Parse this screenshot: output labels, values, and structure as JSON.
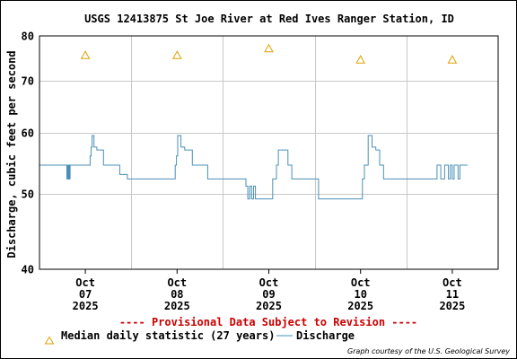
{
  "chart_data": {
    "type": "line",
    "title": "USGS 12413875 St Joe River at Red Ives Ranger Station, ID",
    "ylabel": "Discharge, cubic feet per second",
    "xlabel": "",
    "y_scale": "log",
    "ylim": [
      40,
      80
    ],
    "y_ticks": [
      40,
      50,
      60,
      70,
      80
    ],
    "xlim": [
      "2025-10-06T12:00",
      "2025-10-11T12:00"
    ],
    "x_ticks": [
      {
        "date": "2025-10-07T00:00",
        "lines": [
          "Oct",
          "07",
          "2025"
        ]
      },
      {
        "date": "2025-10-08T00:00",
        "lines": [
          "Oct",
          "08",
          "2025"
        ]
      },
      {
        "date": "2025-10-09T00:00",
        "lines": [
          "Oct",
          "09",
          "2025"
        ]
      },
      {
        "date": "2025-10-10T00:00",
        "lines": [
          "Oct",
          "10",
          "2025"
        ]
      },
      {
        "date": "2025-10-11T00:00",
        "lines": [
          "Oct",
          "11",
          "2025"
        ]
      }
    ],
    "grid": true,
    "provisional_note": "---- Provisional Data Subject to Revision ----",
    "credit": "Graph courtesy of the U.S. Geological Survey",
    "series": [
      {
        "name": "Median daily statistic (27 years)",
        "kind": "triangle-markers",
        "color": "#e0a000",
        "x": [
          "2025-10-07T00:00",
          "2025-10-08T00:00",
          "2025-10-09T00:00",
          "2025-10-10T00:00",
          "2025-10-11T00:00"
        ],
        "y": [
          75.5,
          75.5,
          77,
          74.5,
          74.5
        ]
      },
      {
        "name": "Discharge",
        "kind": "line",
        "color": "#4a8fb5",
        "x": [
          "2025-10-06T12:00",
          "2025-10-06T19:00",
          "2025-10-06T19:10",
          "2025-10-06T19:20",
          "2025-10-06T19:30",
          "2025-10-06T19:40",
          "2025-10-06T19:50",
          "2025-10-06T20:00",
          "2025-10-06T20:10",
          "2025-10-06T20:20",
          "2025-10-07T01:00",
          "2025-10-07T01:15",
          "2025-10-07T01:30",
          "2025-10-07T01:45",
          "2025-10-07T02:00",
          "2025-10-07T02:15",
          "2025-10-07T02:30",
          "2025-10-07T02:45",
          "2025-10-07T03:00",
          "2025-10-07T03:15",
          "2025-10-07T03:30",
          "2025-10-07T03:45",
          "2025-10-07T04:00",
          "2025-10-07T04:15",
          "2025-10-07T04:30",
          "2025-10-07T04:45",
          "2025-10-07T05:00",
          "2025-10-07T05:15",
          "2025-10-07T05:30",
          "2025-10-07T05:45",
          "2025-10-07T06:00",
          "2025-10-07T07:00",
          "2025-10-07T08:00",
          "2025-10-07T09:00",
          "2025-10-07T11:00",
          "2025-10-07T14:00",
          "2025-10-07T17:00",
          "2025-10-07T19:00",
          "2025-10-07T21:00",
          "2025-10-07T23:00",
          "2025-10-07T23:30",
          "2025-10-07T23:50",
          "2025-10-08T00:10",
          "2025-10-08T00:30",
          "2025-10-08T01:00",
          "2025-10-08T02:00",
          "2025-10-08T02:30",
          "2025-10-08T03:00",
          "2025-10-08T04:00",
          "2025-10-08T05:00",
          "2025-10-08T06:00",
          "2025-10-08T08:00",
          "2025-10-08T10:00",
          "2025-10-08T13:00",
          "2025-10-08T16:00",
          "2025-10-08T17:30",
          "2025-10-08T18:00",
          "2025-10-08T18:30",
          "2025-10-08T19:00",
          "2025-10-08T19:30",
          "2025-10-08T20:00",
          "2025-10-08T20:30",
          "2025-10-08T21:00",
          "2025-10-08T22:00",
          "2025-10-09T00:00",
          "2025-10-09T01:00",
          "2025-10-09T02:00",
          "2025-10-09T02:30",
          "2025-10-09T03:00",
          "2025-10-09T05:00",
          "2025-10-09T06:00",
          "2025-10-09T08:00",
          "2025-10-09T13:00",
          "2025-10-09T18:00",
          "2025-10-09T22:00",
          "2025-10-10T00:00",
          "2025-10-10T00:30",
          "2025-10-10T01:00",
          "2025-10-10T02:00",
          "2025-10-10T03:00",
          "2025-10-10T04:00",
          "2025-10-10T05:00",
          "2025-10-10T06:00",
          "2025-10-10T07:00",
          "2025-10-10T12:00",
          "2025-10-10T17:00",
          "2025-10-10T19:00",
          "2025-10-10T20:00",
          "2025-10-10T21:00",
          "2025-10-10T22:00",
          "2025-10-10T22:30",
          "2025-10-10T23:00",
          "2025-10-10T23:30",
          "2025-10-11T00:00",
          "2025-10-11T00:30",
          "2025-10-11T01:00",
          "2025-10-11T01:30",
          "2025-10-11T02:00",
          "2025-10-11T04:00"
        ],
        "y": [
          54.5,
          54.5,
          52.3,
          54.5,
          52.3,
          54.5,
          52.3,
          54.5,
          54.5,
          54.5,
          54.5,
          56,
          57.5,
          59.5,
          59.5,
          57.5,
          57.5,
          57.5,
          57,
          57,
          57,
          57,
          57,
          57,
          57,
          54.5,
          54.5,
          54.5,
          54.5,
          54.5,
          54.5,
          54.5,
          54.5,
          53,
          52.3,
          52.3,
          52.3,
          52.3,
          52.3,
          52.3,
          54.5,
          56,
          59.5,
          59.5,
          57.5,
          57,
          57,
          57,
          54.5,
          54.5,
          54.5,
          52.3,
          52.3,
          52.3,
          52.3,
          52.3,
          51.2,
          49.3,
          51.2,
          49.3,
          51.2,
          49.3,
          49.3,
          49.3,
          49.3,
          52.3,
          54.5,
          57,
          57,
          54.5,
          52.3,
          52.3,
          49.3,
          49.3,
          49.3,
          49.3,
          52.3,
          54.5,
          59.5,
          57.5,
          57,
          54.5,
          52.3,
          52.3,
          52.3,
          52.3,
          52.3,
          54.5,
          52.3,
          54.5,
          54.5,
          52.3,
          54.5,
          52.3,
          54.5,
          54.5,
          52.3,
          54.5,
          54.5
        ]
      }
    ]
  }
}
